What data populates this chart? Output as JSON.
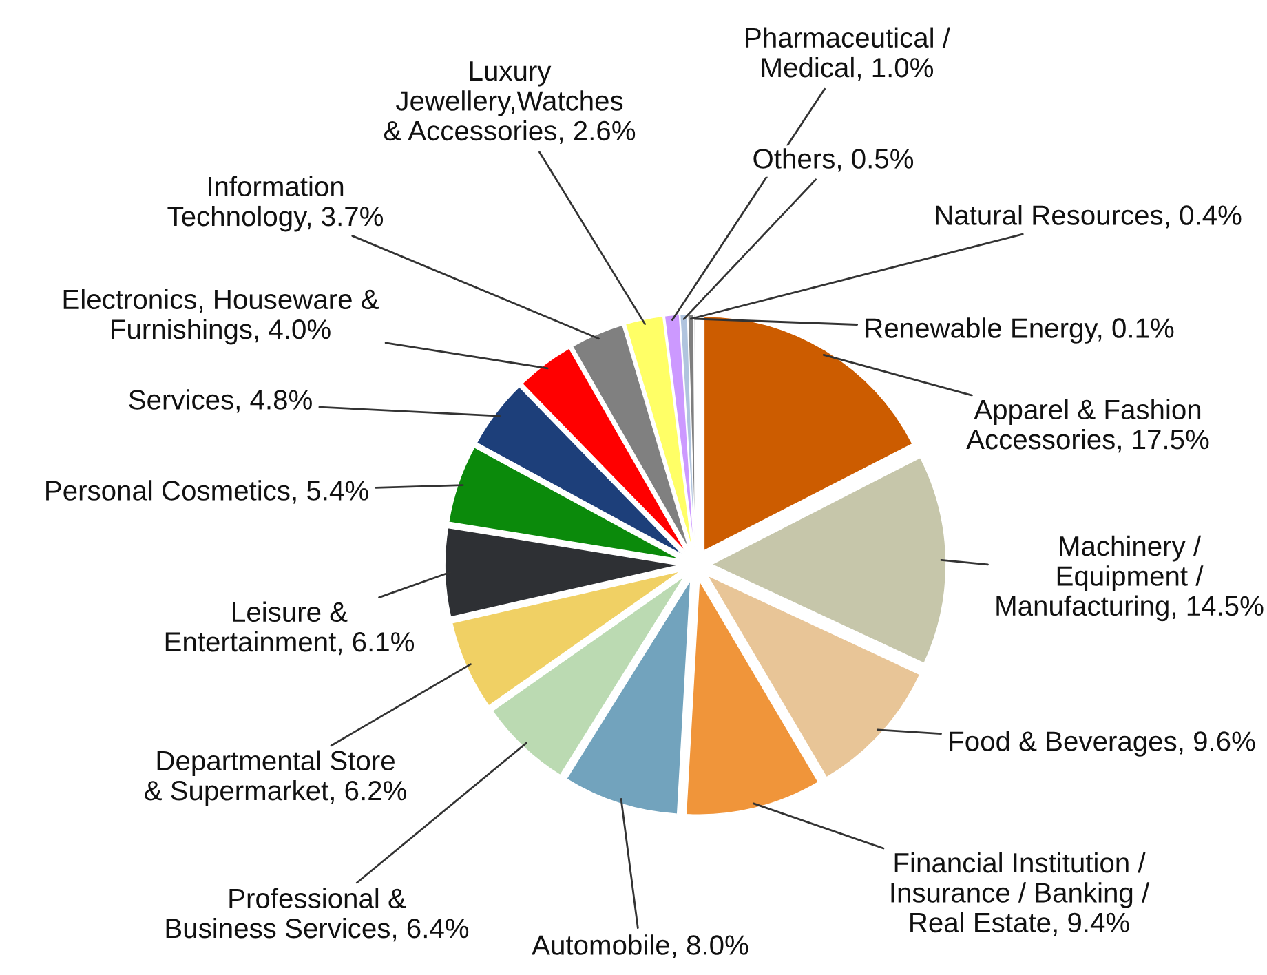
{
  "chart_data": {
    "type": "pie",
    "categories": [
      "Apparel & Fashion\nAccessories",
      "Machinery /\nEquipment /\nManufacturing",
      "Food & Beverages",
      "Financial Institution /\nInsurance / Banking /\nReal Estate",
      "Automobile",
      "Professional &\nBusiness Services",
      "Departmental Store\n& Supermarket",
      "Leisure &\nEntertainment",
      "Personal Cosmetics",
      "Services",
      "Electronics, Houseware &\nFurnishings",
      "Information\nTechnology",
      "Luxury\nJewellery,Watches\n& Accessories",
      "Pharmaceutical /\nMedical",
      "Others",
      "Natural Resources",
      "Renewable Energy"
    ],
    "values": [
      17.5,
      14.5,
      9.6,
      9.4,
      8.0,
      6.4,
      6.2,
      6.1,
      5.4,
      4.8,
      4.0,
      3.7,
      2.6,
      1.0,
      0.5,
      0.4,
      0.1
    ],
    "value_labels": [
      "17.5%",
      "14.5%",
      "9.6%",
      "9.4%",
      "8.0%",
      "6.4%",
      "6.2%",
      "6.1%",
      "5.4%",
      "4.8%",
      "4.0%",
      "3.7%",
      "2.6%",
      "1.0%",
      "0.5%",
      "0.4%",
      "0.1%"
    ],
    "colors": [
      "#cc5c00",
      "#c6c6aa",
      "#e8c597",
      "#f0953a",
      "#72a3bd",
      "#bbdab2",
      "#f0d064",
      "#2e3034",
      "#0b8a0b",
      "#1d3f7a",
      "#ff0000",
      "#808080",
      "#ffff66",
      "#cc99ff",
      "#b0c4de",
      "#7f7f7f",
      "#c0c0c0"
    ]
  }
}
